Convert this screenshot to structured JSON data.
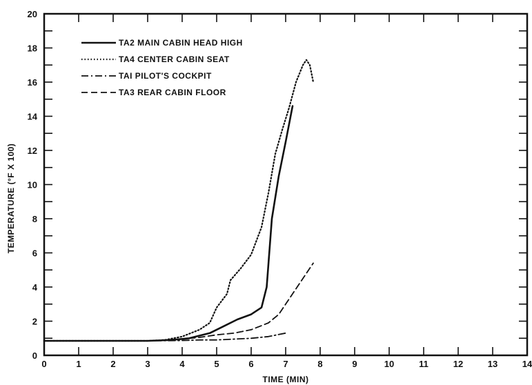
{
  "chart_data": {
    "type": "line",
    "title": "",
    "xlabel": "TIME (MIN)",
    "ylabel": "TEMPERATURE (°F X 100)",
    "xlim": [
      0,
      14
    ],
    "ylim": [
      0,
      20
    ],
    "xticks": [
      0,
      1,
      2,
      3,
      4,
      5,
      6,
      7,
      8,
      9,
      10,
      11,
      12,
      13,
      14
    ],
    "xtick_labels": [
      "0",
      "1",
      "2",
      "3",
      "4",
      "5",
      "6",
      "7",
      "8",
      "9",
      "10",
      "11",
      "12",
      "13",
      "14"
    ],
    "yticks": [
      0,
      2,
      4,
      6,
      8,
      10,
      12,
      14,
      16,
      18,
      20
    ],
    "ytick_labels": [
      "0",
      "2",
      "4",
      "6",
      "8",
      "10",
      "12",
      "14",
      "16",
      "18",
      "20"
    ],
    "grid": false,
    "legend_position": "top-left",
    "series": [
      {
        "name": "TA2 MAIN CABIN HEAD HIGH",
        "style": "solid",
        "color": "#111111",
        "x": [
          0,
          1,
          2,
          3,
          3.7,
          4.2,
          4.8,
          5.2,
          5.6,
          6.0,
          6.3,
          6.45,
          6.6,
          6.8,
          7.0,
          7.2
        ],
        "y": [
          0.85,
          0.85,
          0.85,
          0.85,
          0.9,
          1.0,
          1.3,
          1.7,
          2.1,
          2.4,
          2.8,
          4.0,
          8.0,
          10.5,
          12.5,
          14.6
        ]
      },
      {
        "name": "TA4 CENTER CABIN SEAT",
        "style": "dotted",
        "color": "#111111",
        "x": [
          0,
          1,
          2,
          3,
          3.5,
          4.0,
          4.5,
          4.8,
          5.0,
          5.3,
          5.4,
          5.7,
          6.0,
          6.3,
          6.5,
          6.7,
          6.9,
          7.1,
          7.3,
          7.5,
          7.6,
          7.7,
          7.8
        ],
        "y": [
          0.85,
          0.85,
          0.85,
          0.85,
          0.9,
          1.1,
          1.5,
          1.9,
          2.8,
          3.6,
          4.4,
          5.1,
          5.9,
          7.5,
          9.5,
          11.8,
          13.2,
          14.5,
          16.0,
          17.0,
          17.3,
          17.0,
          16.0
        ]
      },
      {
        "name": "TAI PILOT'S COCKPIT",
        "style": "dashdot",
        "color": "#111111",
        "x": [
          0,
          1,
          2,
          3,
          4,
          4.5,
          5.0,
          5.5,
          6.0,
          6.5,
          7.0
        ],
        "y": [
          0.85,
          0.85,
          0.85,
          0.85,
          0.87,
          0.9,
          0.9,
          0.95,
          1.0,
          1.1,
          1.3
        ]
      },
      {
        "name": "TA3 REAR CABIN FLOOR",
        "style": "dashed",
        "color": "#111111",
        "x": [
          0,
          1,
          2,
          3,
          4,
          4.5,
          5.0,
          5.5,
          6.0,
          6.5,
          6.8,
          7.0,
          7.2,
          7.5,
          7.8
        ],
        "y": [
          0.85,
          0.85,
          0.85,
          0.85,
          0.95,
          1.05,
          1.2,
          1.3,
          1.5,
          1.9,
          2.4,
          3.0,
          3.6,
          4.5,
          5.4
        ]
      }
    ]
  }
}
